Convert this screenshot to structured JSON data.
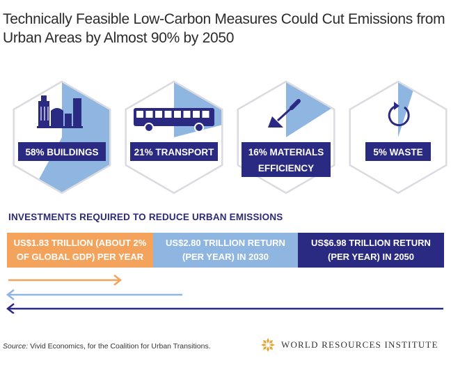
{
  "title": "Technically Feasible Low-Carbon Measures Could Cut Emissions from Urban Areas by Almost 90% by 2050",
  "colors": {
    "navy": "#2b2a82",
    "light_blue": "#8fb5e1",
    "orange": "#f3a35c",
    "hex_outline": "#d9dbe0"
  },
  "chart_data": [
    {
      "type": "pie",
      "title": "",
      "slices": [
        {
          "label": "58% BUILDINGS",
          "category": "BUILDINGS",
          "value": 58,
          "icon": "buildings-icon"
        },
        {
          "label": "21% TRANSPORT",
          "category": "TRANSPORT",
          "value": 21,
          "icon": "bus-icon"
        },
        {
          "label": "16% MATERIALS EFFICIENCY",
          "category": "MATERIALS EFFICIENCY",
          "value": 16,
          "icon": "trowel-icon"
        },
        {
          "label": "5% WASTE",
          "category": "WASTE",
          "value": 5,
          "icon": "recycle-icon"
        }
      ]
    },
    {
      "type": "bar",
      "title": "INVESTMENTS REQUIRED TO REDUCE URBAN EMISSIONS",
      "segments": [
        {
          "label": "US$1.83 TRILLION (ABOUT 2% OF GLOBAL GDP) PER YEAR",
          "value": 1.83,
          "color": "#f3a35c"
        },
        {
          "label": "US$2.80 TRILLION RETURN (PER YEAR) IN 2030",
          "value": 2.8,
          "color": "#8fb5e1"
        },
        {
          "label": "US$6.98 TRILLION RETURN (PER YEAR) IN 2050",
          "value": 6.98,
          "color": "#2b2a82"
        }
      ]
    }
  ],
  "source_label": "Source:",
  "source_text": " Vivid Economics, for the Coalition for Urban Transitions.",
  "logo": {
    "text": "WORLD RESOURCES INSTITUTE",
    "icon": "wri-logo-icon"
  }
}
